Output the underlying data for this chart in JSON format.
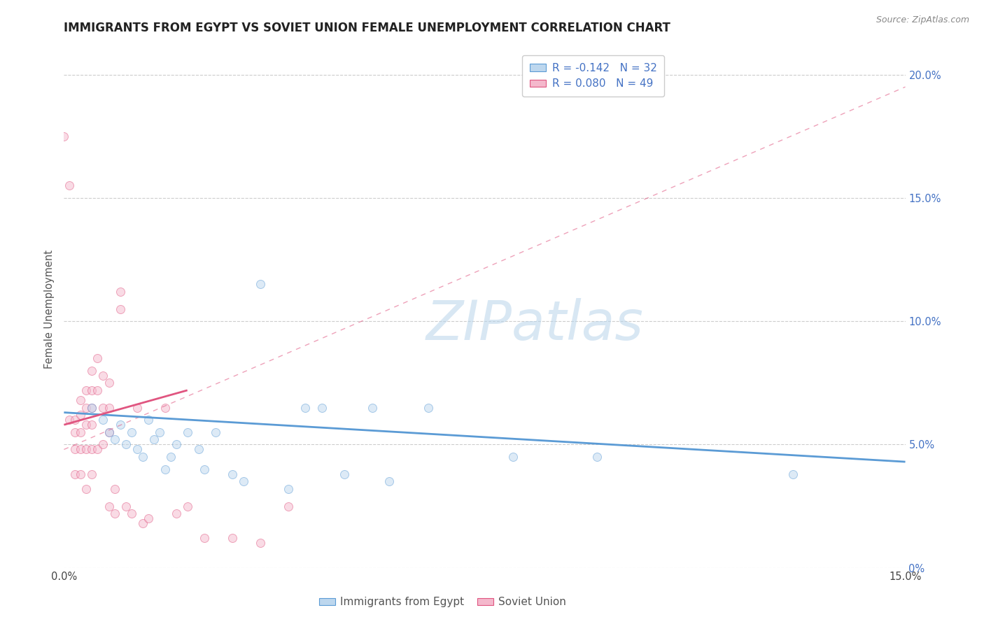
{
  "title": "IMMIGRANTS FROM EGYPT VS SOVIET UNION FEMALE UNEMPLOYMENT CORRELATION CHART",
  "source": "Source: ZipAtlas.com",
  "ylabel": "Female Unemployment",
  "watermark": "ZIPatlas",
  "xlim": [
    0.0,
    0.15
  ],
  "ylim": [
    0.0,
    0.21
  ],
  "xtick_positions": [
    0.0,
    0.03,
    0.06,
    0.09,
    0.12,
    0.15
  ],
  "xtick_labels": [
    "0.0%",
    "",
    "",
    "",
    "",
    "15.0%"
  ],
  "yticks": [
    0.0,
    0.05,
    0.1,
    0.15,
    0.2
  ],
  "ytick_labels_right": [
    "0%",
    "5.0%",
    "10.0%",
    "15.0%",
    "20.0%"
  ],
  "legend_row1": "R = -0.142   N = 32",
  "legend_row2": "R = 0.080   N = 49",
  "blue_scatter_x": [
    0.005,
    0.007,
    0.008,
    0.009,
    0.01,
    0.011,
    0.012,
    0.013,
    0.014,
    0.015,
    0.016,
    0.017,
    0.018,
    0.019,
    0.02,
    0.022,
    0.024,
    0.025,
    0.027,
    0.03,
    0.032,
    0.035,
    0.04,
    0.043,
    0.046,
    0.05,
    0.055,
    0.058,
    0.065,
    0.08,
    0.095,
    0.13
  ],
  "blue_scatter_y": [
    0.065,
    0.06,
    0.055,
    0.052,
    0.058,
    0.05,
    0.055,
    0.048,
    0.045,
    0.06,
    0.052,
    0.055,
    0.04,
    0.045,
    0.05,
    0.055,
    0.048,
    0.04,
    0.055,
    0.038,
    0.035,
    0.115,
    0.032,
    0.065,
    0.065,
    0.038,
    0.065,
    0.035,
    0.065,
    0.045,
    0.045,
    0.038
  ],
  "pink_scatter_x": [
    0.0,
    0.001,
    0.001,
    0.002,
    0.002,
    0.002,
    0.002,
    0.003,
    0.003,
    0.003,
    0.003,
    0.003,
    0.004,
    0.004,
    0.004,
    0.004,
    0.004,
    0.005,
    0.005,
    0.005,
    0.005,
    0.005,
    0.005,
    0.006,
    0.006,
    0.006,
    0.007,
    0.007,
    0.007,
    0.008,
    0.008,
    0.008,
    0.008,
    0.009,
    0.009,
    0.01,
    0.01,
    0.011,
    0.012,
    0.013,
    0.014,
    0.015,
    0.018,
    0.02,
    0.022,
    0.025,
    0.03,
    0.035,
    0.04
  ],
  "pink_scatter_y": [
    0.175,
    0.155,
    0.06,
    0.06,
    0.055,
    0.048,
    0.038,
    0.068,
    0.062,
    0.055,
    0.048,
    0.038,
    0.072,
    0.065,
    0.058,
    0.048,
    0.032,
    0.08,
    0.072,
    0.065,
    0.058,
    0.048,
    0.038,
    0.085,
    0.072,
    0.048,
    0.078,
    0.065,
    0.05,
    0.075,
    0.065,
    0.055,
    0.025,
    0.032,
    0.022,
    0.112,
    0.105,
    0.025,
    0.022,
    0.065,
    0.018,
    0.02,
    0.065,
    0.022,
    0.025,
    0.012,
    0.012,
    0.01,
    0.025
  ],
  "blue_line_x": [
    0.0,
    0.15
  ],
  "blue_line_y": [
    0.063,
    0.043
  ],
  "pink_solid_line_x": [
    0.0,
    0.022
  ],
  "pink_solid_line_y": [
    0.058,
    0.072
  ],
  "pink_dashed_line_x": [
    0.0,
    0.15
  ],
  "pink_dashed_line_y": [
    0.048,
    0.195
  ],
  "scatter_size": 75,
  "scatter_alpha": 0.5,
  "scatter_edgewidth": 0.7,
  "blue_color": "#5b9bd5",
  "blue_fill": "#bdd7ee",
  "pink_color": "#e05580",
  "pink_fill": "#f4b8cc",
  "grid_color": "#cccccc",
  "background_color": "#ffffff",
  "title_fontsize": 12,
  "axis_label_fontsize": 10.5,
  "tick_fontsize": 10.5
}
